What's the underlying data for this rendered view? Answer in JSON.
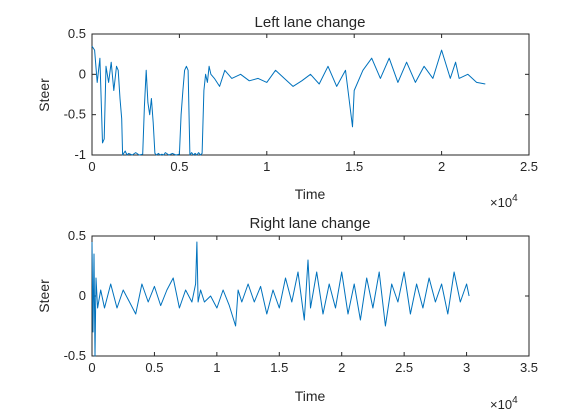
{
  "colors": {
    "line": "#0072BD",
    "axis": "#262626",
    "background": "#ffffff"
  },
  "chart_data": [
    {
      "type": "line",
      "title": "Left lane change",
      "xlabel": "Time",
      "ylabel": "Steer",
      "xlim": [
        0,
        25000
      ],
      "ylim": [
        -1,
        0.5
      ],
      "xticks": [
        0,
        5000,
        10000,
        15000,
        20000,
        25000
      ],
      "xtick_labels": [
        "0",
        "0.5",
        "1",
        "1.5",
        "2",
        "2.5"
      ],
      "yticks": [
        -1,
        -0.5,
        0,
        0.5
      ],
      "ytick_labels": [
        "-1",
        "-0.5",
        "0",
        "0.5"
      ],
      "x_exponent_label": "×10",
      "x_exponent_power": "4",
      "grid": false,
      "series": [
        {
          "x": [
            0,
            150,
            300,
            450,
            600,
            700,
            800,
            950,
            1100,
            1250,
            1400,
            1500,
            1600,
            1700,
            1750,
            1900,
            2000,
            2100,
            2300,
            2500,
            2700,
            2900,
            3000,
            3100,
            3200,
            3300,
            3400,
            3500,
            3600,
            3700,
            3800,
            3900,
            4000,
            4100,
            4200,
            4400,
            4600,
            4800,
            5000,
            5100,
            5200,
            5300,
            5400,
            5500,
            5600,
            5700,
            5800,
            5900,
            6000,
            6100,
            6200,
            6300,
            6400,
            6500,
            6600,
            6700,
            6800,
            7000,
            7300,
            7600,
            8000,
            8500,
            9000,
            9500,
            10000,
            10500,
            11000,
            11500,
            12000,
            12500,
            13000,
            13500,
            14000,
            14500,
            14700,
            14900,
            15000,
            15500,
            16000,
            16500,
            17000,
            17500,
            18000,
            18500,
            19000,
            19500,
            20000,
            20500,
            20800,
            21000,
            21500,
            22000,
            22500
          ],
          "y": [
            0.35,
            0.3,
            -0.1,
            0.2,
            -0.85,
            -0.8,
            0.1,
            -0.1,
            0.15,
            -0.2,
            0.1,
            0.05,
            -0.3,
            -0.55,
            -1.0,
            -0.95,
            -1.0,
            -0.98,
            -1.0,
            -0.97,
            -1.0,
            -0.99,
            -0.4,
            0.05,
            -0.35,
            -0.5,
            -0.3,
            -0.6,
            -0.98,
            -1.0,
            -0.98,
            -1.0,
            -0.99,
            -1.0,
            -0.97,
            -1.0,
            -0.98,
            -1.0,
            -0.99,
            -0.5,
            -0.2,
            0.05,
            0.1,
            0.05,
            -1.0,
            -0.97,
            -1.0,
            -0.98,
            -1.0,
            -0.97,
            -1.0,
            -0.98,
            -0.2,
            0.0,
            -0.1,
            0.1,
            0.0,
            -0.05,
            -0.15,
            0.05,
            -0.05,
            0.0,
            -0.08,
            -0.05,
            -0.1,
            0.05,
            -0.05,
            -0.15,
            -0.08,
            0.0,
            -0.12,
            0.1,
            -0.15,
            0.05,
            -0.3,
            -0.65,
            -0.2,
            0.05,
            0.2,
            -0.05,
            0.2,
            -0.1,
            0.15,
            -0.1,
            0.1,
            -0.05,
            0.3,
            -0.05,
            0.15,
            -0.05,
            0.0,
            -0.1,
            -0.12
          ]
        }
      ]
    },
    {
      "type": "line",
      "title": "Right lane change",
      "xlabel": "Time",
      "ylabel": "Steer",
      "xlim": [
        0,
        35000
      ],
      "ylim": [
        -0.5,
        0.5
      ],
      "xticks": [
        0,
        5000,
        10000,
        15000,
        20000,
        25000,
        30000,
        35000
      ],
      "xtick_labels": [
        "0",
        "0.5",
        "1",
        "1.5",
        "2",
        "2.5",
        "3",
        "3.5"
      ],
      "yticks": [
        -0.5,
        0,
        0.5
      ],
      "ytick_labels": [
        "-0.5",
        "0",
        "0.5"
      ],
      "x_exponent_label": "×10",
      "x_exponent_power": "4",
      "grid": false,
      "series": [
        {
          "x": [
            0,
            80,
            160,
            240,
            320,
            450,
            700,
            1000,
            1500,
            2000,
            2500,
            3000,
            3500,
            4000,
            4500,
            5000,
            5500,
            6000,
            6500,
            7000,
            7500,
            8000,
            8300,
            8400,
            8500,
            8700,
            9000,
            9500,
            10000,
            10500,
            11000,
            11500,
            11700,
            12000,
            12500,
            13000,
            13500,
            14000,
            14500,
            15000,
            15500,
            16000,
            16500,
            17000,
            17300,
            17500,
            18000,
            18500,
            19000,
            19500,
            20000,
            20500,
            21000,
            21500,
            22000,
            22500,
            23000,
            23500,
            24000,
            24500,
            25000,
            25500,
            26000,
            26500,
            27000,
            27500,
            28000,
            28500,
            29000,
            29500,
            30000,
            30200
          ],
          "y": [
            0.45,
            -0.3,
            0.35,
            -0.5,
            0.15,
            -0.1,
            0.05,
            -0.1,
            0.1,
            -0.1,
            0.05,
            -0.05,
            -0.15,
            0.1,
            -0.05,
            0.08,
            -0.08,
            0.05,
            0.15,
            -0.1,
            0.05,
            -0.05,
            0.1,
            0.45,
            -0.05,
            0.05,
            -0.05,
            0.0,
            -0.1,
            0.05,
            -0.08,
            -0.25,
            0.05,
            -0.05,
            0.1,
            -0.05,
            0.08,
            -0.15,
            0.05,
            -0.1,
            0.15,
            -0.05,
            0.2,
            -0.2,
            0.3,
            -0.1,
            0.2,
            -0.15,
            0.1,
            -0.1,
            0.2,
            -0.15,
            0.1,
            -0.2,
            0.15,
            -0.1,
            0.2,
            -0.25,
            0.1,
            -0.05,
            0.2,
            -0.15,
            0.1,
            -0.1,
            0.15,
            -0.05,
            0.1,
            -0.15,
            0.2,
            -0.05,
            0.1,
            0.0
          ]
        }
      ]
    }
  ]
}
